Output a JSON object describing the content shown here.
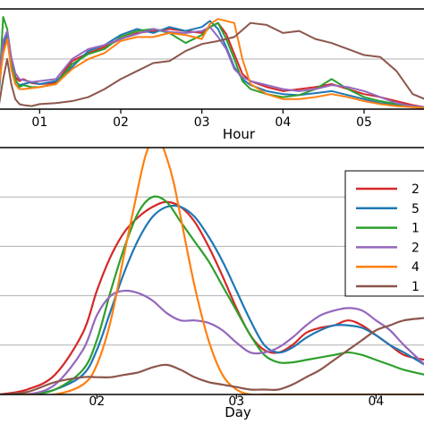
{
  "chart_data": [
    {
      "type": "line",
      "xlabel": "Hour",
      "ylabel": "",
      "xlim": [
        0.5,
        5.75
      ],
      "ylim": [
        0,
        1
      ],
      "grid": "horizontal",
      "xticks": [
        {
          "v": 1,
          "label": "01"
        },
        {
          "v": 2,
          "label": "02"
        },
        {
          "v": 3,
          "label": "03"
        },
        {
          "v": 4,
          "label": "04"
        },
        {
          "v": 5,
          "label": "05"
        }
      ],
      "yticks": [
        0.0,
        0.5
      ],
      "series": [
        {
          "color": "#d62728",
          "x": [
            0.5,
            0.55,
            0.6,
            0.65,
            0.7,
            0.75,
            0.8,
            0.9,
            1.0,
            1.2,
            1.4,
            1.6,
            1.8,
            2.0,
            2.2,
            2.4,
            2.6,
            2.8,
            3.0,
            3.1,
            3.2,
            3.3,
            3.4,
            3.5,
            3.6,
            3.8,
            4.0,
            4.2,
            4.4,
            4.6,
            4.8,
            5.0,
            5.2,
            5.4,
            5.6,
            5.75
          ],
          "y": [
            0.22,
            0.62,
            0.72,
            0.48,
            0.32,
            0.28,
            0.3,
            0.26,
            0.25,
            0.26,
            0.48,
            0.56,
            0.62,
            0.7,
            0.76,
            0.78,
            0.8,
            0.78,
            0.76,
            0.82,
            0.86,
            0.75,
            0.55,
            0.35,
            0.28,
            0.22,
            0.18,
            0.2,
            0.22,
            0.25,
            0.2,
            0.15,
            0.12,
            0.08,
            0.04,
            0.02
          ]
        },
        {
          "color": "#1f77b4",
          "x": [
            0.5,
            0.55,
            0.6,
            0.65,
            0.7,
            0.75,
            0.8,
            0.9,
            1.0,
            1.2,
            1.4,
            1.6,
            1.8,
            2.0,
            2.2,
            2.4,
            2.6,
            2.8,
            3.0,
            3.1,
            3.2,
            3.3,
            3.4,
            3.5,
            3.6,
            3.8,
            4.0,
            4.2,
            4.4,
            4.6,
            4.8,
            5.0,
            5.2,
            5.4,
            5.6,
            5.75
          ],
          "y": [
            0.18,
            0.64,
            0.74,
            0.45,
            0.28,
            0.24,
            0.25,
            0.27,
            0.25,
            0.28,
            0.42,
            0.58,
            0.64,
            0.74,
            0.8,
            0.76,
            0.82,
            0.78,
            0.82,
            0.88,
            0.8,
            0.62,
            0.42,
            0.3,
            0.24,
            0.18,
            0.15,
            0.14,
            0.16,
            0.18,
            0.14,
            0.1,
            0.06,
            0.04,
            0.02,
            0.01
          ]
        },
        {
          "color": "#2ca02c",
          "x": [
            0.5,
            0.55,
            0.6,
            0.65,
            0.7,
            0.75,
            0.8,
            0.9,
            1.0,
            1.2,
            1.4,
            1.6,
            1.8,
            2.0,
            2.2,
            2.4,
            2.6,
            2.8,
            3.0,
            3.1,
            3.2,
            3.3,
            3.4,
            3.5,
            3.6,
            3.8,
            4.0,
            4.2,
            4.4,
            4.6,
            4.8,
            5.0,
            5.2,
            5.4,
            5.6,
            5.75
          ],
          "y": [
            0.2,
            0.92,
            0.8,
            0.5,
            0.3,
            0.22,
            0.24,
            0.22,
            0.22,
            0.25,
            0.45,
            0.55,
            0.6,
            0.72,
            0.78,
            0.8,
            0.76,
            0.66,
            0.74,
            0.82,
            0.86,
            0.7,
            0.5,
            0.28,
            0.2,
            0.15,
            0.12,
            0.14,
            0.2,
            0.3,
            0.2,
            0.12,
            0.08,
            0.05,
            0.03,
            0.02
          ]
        },
        {
          "color": "#9467bd",
          "x": [
            0.5,
            0.55,
            0.6,
            0.65,
            0.7,
            0.75,
            0.8,
            0.9,
            1.0,
            1.2,
            1.4,
            1.6,
            1.8,
            2.0,
            2.2,
            2.4,
            2.6,
            2.8,
            3.0,
            3.1,
            3.2,
            3.3,
            3.4,
            3.5,
            3.6,
            3.8,
            4.0,
            4.2,
            4.4,
            4.6,
            4.8,
            5.0,
            5.2,
            5.4,
            5.6,
            5.75
          ],
          "y": [
            0.3,
            0.68,
            0.78,
            0.52,
            0.36,
            0.3,
            0.29,
            0.27,
            0.28,
            0.3,
            0.5,
            0.6,
            0.64,
            0.7,
            0.75,
            0.8,
            0.77,
            0.76,
            0.78,
            0.82,
            0.72,
            0.6,
            0.4,
            0.32,
            0.28,
            0.24,
            0.2,
            0.18,
            0.2,
            0.24,
            0.22,
            0.18,
            0.12,
            0.06,
            0.03,
            0.02
          ]
        },
        {
          "color": "#ff7f0e",
          "x": [
            0.5,
            0.55,
            0.6,
            0.65,
            0.7,
            0.75,
            0.8,
            0.9,
            1.0,
            1.2,
            1.4,
            1.6,
            1.8,
            2.0,
            2.2,
            2.4,
            2.6,
            2.8,
            3.0,
            3.1,
            3.2,
            3.3,
            3.4,
            3.5,
            3.6,
            3.8,
            4.0,
            4.2,
            4.4,
            4.6,
            4.8,
            5.0,
            5.2,
            5.4,
            5.6,
            5.75
          ],
          "y": [
            0.25,
            0.55,
            0.7,
            0.4,
            0.25,
            0.2,
            0.2,
            0.21,
            0.22,
            0.25,
            0.4,
            0.5,
            0.56,
            0.68,
            0.72,
            0.72,
            0.76,
            0.74,
            0.7,
            0.85,
            0.9,
            0.88,
            0.86,
            0.5,
            0.25,
            0.15,
            0.1,
            0.1,
            0.12,
            0.15,
            0.12,
            0.08,
            0.05,
            0.03,
            0.02,
            0.01
          ]
        },
        {
          "color": "#8c564b",
          "x": [
            0.5,
            0.55,
            0.6,
            0.65,
            0.7,
            0.75,
            0.8,
            0.9,
            1.0,
            1.2,
            1.4,
            1.6,
            1.8,
            2.0,
            2.2,
            2.4,
            2.6,
            2.8,
            3.0,
            3.2,
            3.4,
            3.6,
            3.8,
            4.0,
            4.2,
            4.4,
            4.6,
            4.8,
            5.0,
            5.2,
            5.4,
            5.6,
            5.75
          ],
          "y": [
            0.05,
            0.3,
            0.5,
            0.25,
            0.1,
            0.05,
            0.04,
            0.03,
            0.05,
            0.06,
            0.08,
            0.12,
            0.2,
            0.3,
            0.38,
            0.46,
            0.48,
            0.58,
            0.65,
            0.68,
            0.72,
            0.86,
            0.84,
            0.76,
            0.78,
            0.7,
            0.66,
            0.6,
            0.54,
            0.52,
            0.38,
            0.15,
            0.1
          ]
        }
      ]
    },
    {
      "type": "line",
      "xlabel": "Day",
      "ylabel": "",
      "xlim": [
        1.3,
        4.35
      ],
      "ylim": [
        0,
        1
      ],
      "grid": "horizontal",
      "legend_position": "right",
      "xticks": [
        {
          "v": 2,
          "label": "02"
        },
        {
          "v": 3,
          "label": "03"
        },
        {
          "v": 4,
          "label": "04"
        }
      ],
      "yticks": [
        0.2,
        0.4,
        0.6,
        0.8,
        1.0
      ],
      "series": [
        {
          "name": "2",
          "color": "#d62728",
          "x": [
            1.3,
            1.5,
            1.7,
            1.9,
            2.0,
            2.1,
            2.2,
            2.3,
            2.4,
            2.5,
            2.6,
            2.7,
            2.8,
            2.9,
            3.0,
            3.1,
            3.2,
            3.3,
            3.4,
            3.5,
            3.6,
            3.7,
            3.8,
            3.9,
            4.0,
            4.1,
            4.2,
            4.35
          ],
          "y": [
            0.0,
            0.02,
            0.08,
            0.25,
            0.42,
            0.56,
            0.66,
            0.72,
            0.76,
            0.78,
            0.76,
            0.7,
            0.6,
            0.48,
            0.35,
            0.24,
            0.18,
            0.17,
            0.2,
            0.25,
            0.27,
            0.28,
            0.3,
            0.28,
            0.24,
            0.2,
            0.16,
            0.14
          ]
        },
        {
          "name": "5",
          "color": "#1f77b4",
          "x": [
            1.3,
            1.5,
            1.7,
            1.9,
            2.0,
            2.1,
            2.2,
            2.3,
            2.4,
            2.5,
            2.6,
            2.7,
            2.8,
            2.9,
            3.0,
            3.1,
            3.2,
            3.3,
            3.4,
            3.5,
            3.6,
            3.7,
            3.8,
            3.9,
            4.0,
            4.1,
            4.2,
            4.35
          ],
          "y": [
            0.0,
            0.0,
            0.02,
            0.08,
            0.18,
            0.34,
            0.5,
            0.63,
            0.72,
            0.76,
            0.76,
            0.72,
            0.64,
            0.54,
            0.42,
            0.3,
            0.2,
            0.17,
            0.19,
            0.23,
            0.26,
            0.28,
            0.28,
            0.27,
            0.24,
            0.2,
            0.17,
            0.12
          ]
        },
        {
          "name": "1",
          "color": "#2ca02c",
          "x": [
            1.3,
            1.5,
            1.7,
            1.9,
            2.0,
            2.1,
            2.2,
            2.3,
            2.4,
            2.5,
            2.6,
            2.7,
            2.8,
            2.9,
            3.0,
            3.1,
            3.2,
            3.3,
            3.4,
            3.5,
            3.6,
            3.7,
            3.8,
            3.9,
            4.0,
            4.1,
            4.2,
            4.35
          ],
          "y": [
            0.0,
            0.0,
            0.02,
            0.1,
            0.22,
            0.42,
            0.6,
            0.74,
            0.8,
            0.78,
            0.7,
            0.62,
            0.54,
            0.44,
            0.34,
            0.24,
            0.16,
            0.13,
            0.13,
            0.14,
            0.15,
            0.16,
            0.17,
            0.16,
            0.14,
            0.12,
            0.1,
            0.08
          ]
        },
        {
          "name": "2",
          "color": "#9467bd",
          "x": [
            1.3,
            1.5,
            1.7,
            1.9,
            2.0,
            2.1,
            2.2,
            2.3,
            2.4,
            2.5,
            2.6,
            2.7,
            2.8,
            2.9,
            3.0,
            3.1,
            3.2,
            3.3,
            3.4,
            3.5,
            3.6,
            3.7,
            3.8,
            3.9,
            4.0,
            4.1,
            4.2,
            4.35
          ],
          "y": [
            0.0,
            0.0,
            0.04,
            0.18,
            0.32,
            0.4,
            0.42,
            0.41,
            0.38,
            0.33,
            0.3,
            0.3,
            0.29,
            0.26,
            0.21,
            0.17,
            0.17,
            0.19,
            0.23,
            0.28,
            0.32,
            0.34,
            0.35,
            0.34,
            0.3,
            0.26,
            0.2,
            0.12
          ]
        },
        {
          "name": "4",
          "color": "#ff7f0e",
          "x": [
            1.3,
            1.5,
            1.7,
            1.9,
            2.0,
            2.1,
            2.2,
            2.3,
            2.35,
            2.4,
            2.45,
            2.5,
            2.55,
            2.6,
            2.7,
            2.8,
            2.9,
            3.0,
            3.1,
            3.2,
            3.3,
            3.4,
            3.5,
            3.6,
            3.7,
            3.8,
            3.9,
            4.0,
            4.1,
            4.2,
            4.35
          ],
          "y": [
            0.0,
            0.0,
            0.0,
            0.04,
            0.12,
            0.3,
            0.58,
            0.85,
            0.97,
            1.03,
            1.03,
            0.96,
            0.86,
            0.72,
            0.44,
            0.22,
            0.08,
            0.02,
            0.0,
            0.0,
            0.0,
            0.0,
            0.0,
            0.0,
            0.0,
            0.0,
            0.0,
            0.0,
            0.0,
            0.0,
            0.0
          ]
        },
        {
          "name": "1",
          "color": "#8c564b",
          "x": [
            1.3,
            1.5,
            1.7,
            1.9,
            2.0,
            2.1,
            2.2,
            2.3,
            2.4,
            2.5,
            2.6,
            2.7,
            2.8,
            2.9,
            3.0,
            3.1,
            3.2,
            3.3,
            3.4,
            3.5,
            3.6,
            3.7,
            3.8,
            3.9,
            4.0,
            4.1,
            4.2,
            4.35
          ],
          "y": [
            0.0,
            0.01,
            0.05,
            0.07,
            0.07,
            0.07,
            0.08,
            0.09,
            0.11,
            0.12,
            0.1,
            0.07,
            0.05,
            0.04,
            0.03,
            0.02,
            0.02,
            0.02,
            0.04,
            0.07,
            0.1,
            0.14,
            0.18,
            0.22,
            0.26,
            0.28,
            0.3,
            0.31
          ]
        }
      ]
    }
  ]
}
